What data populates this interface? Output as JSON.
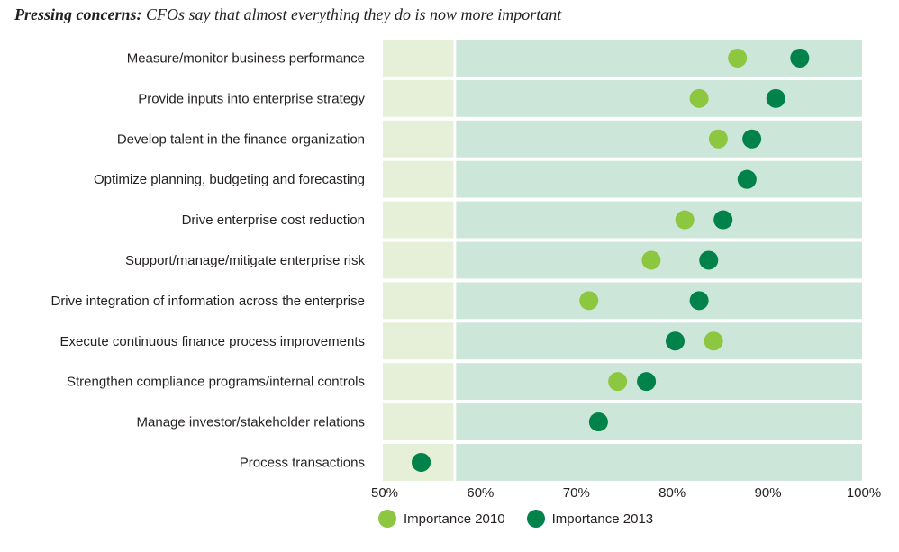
{
  "title": {
    "lead": "Pressing concerns:",
    "rest": "CFOs say that almost everything they do is now more important"
  },
  "colors": {
    "importance_2010": "#8dc63f",
    "importance_2013": "#00824a",
    "band_light": "#e6f0d8",
    "band_main": "#cde6da"
  },
  "chart_data": {
    "type": "scatter",
    "title": "Pressing concerns: CFOs say that almost everything they do is now more important",
    "xlim": [
      50,
      100
    ],
    "x_ticks": [
      "50%",
      "60%",
      "70%",
      "80%",
      "90%",
      "100%"
    ],
    "x_tick_values": [
      50,
      60,
      70,
      80,
      90,
      100
    ],
    "light_band_upper": 57.5,
    "categories": [
      "Measure/monitor business performance",
      "Provide inputs into enterprise strategy",
      "Develop talent in the finance organization",
      "Optimize planning, budgeting and forecasting",
      "Drive enterprise cost reduction",
      "Support/manage/mitigate enterprise risk",
      "Drive integration of information across the enterprise",
      "Execute continuous finance process improvements",
      "Strengthen compliance programs/internal controls",
      "Manage investor/stakeholder relations",
      "Process transactions"
    ],
    "series": [
      {
        "name": "Importance 2010",
        "values": [
          87,
          83,
          85,
          88,
          81.5,
          78,
          71.5,
          84.5,
          74.5,
          72.5,
          54
        ]
      },
      {
        "name": "Importance 2013",
        "values": [
          93.5,
          91,
          88.5,
          88,
          85.5,
          84,
          83,
          80.5,
          77.5,
          72.5,
          54
        ]
      }
    ],
    "legend_position": "bottom"
  }
}
